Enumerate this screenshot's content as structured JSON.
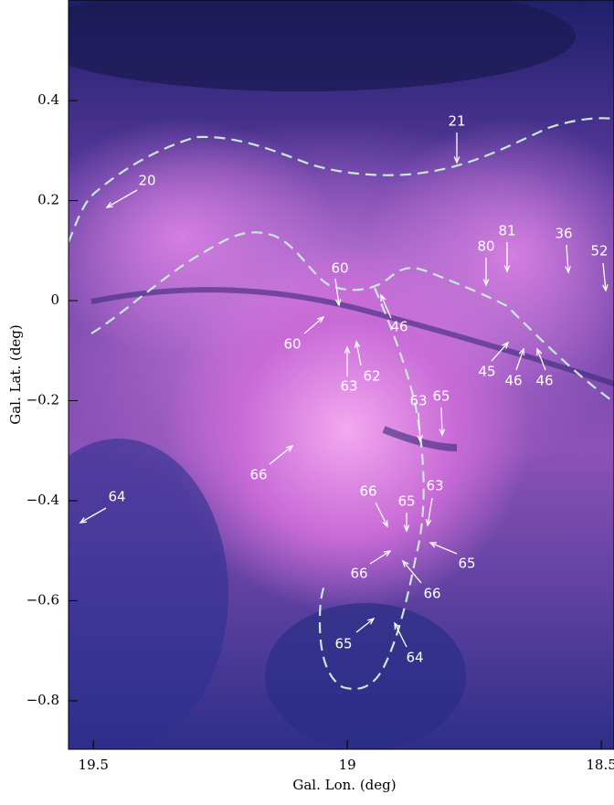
{
  "chart_data": {
    "type": "image",
    "x_label": "Gal. Lon. (deg)",
    "y_label": "Gal. Lat. (deg)",
    "xlim": [
      19.549,
      18.475
    ],
    "ylim": [
      -0.897,
      0.601
    ],
    "xticks": [
      19.5,
      19,
      18.5
    ],
    "yticks": [
      0.4,
      0.2,
      0,
      {
        "value": -0.2,
        "label": "−0.2"
      },
      {
        "value": -0.4,
        "label": "−0.4"
      },
      {
        "value": -0.6,
        "label": "−0.6"
      },
      {
        "value": -0.8,
        "label": "−0.8"
      }
    ],
    "annotations": [
      "20",
      "21",
      "80",
      "81",
      "36",
      "52",
      "60",
      "60",
      "46",
      "63",
      "62",
      "45",
      "46",
      "46",
      "63",
      "65",
      "66",
      "64",
      "66",
      "65",
      "63",
      "65",
      "66",
      "66",
      "65",
      "64"
    ]
  }
}
